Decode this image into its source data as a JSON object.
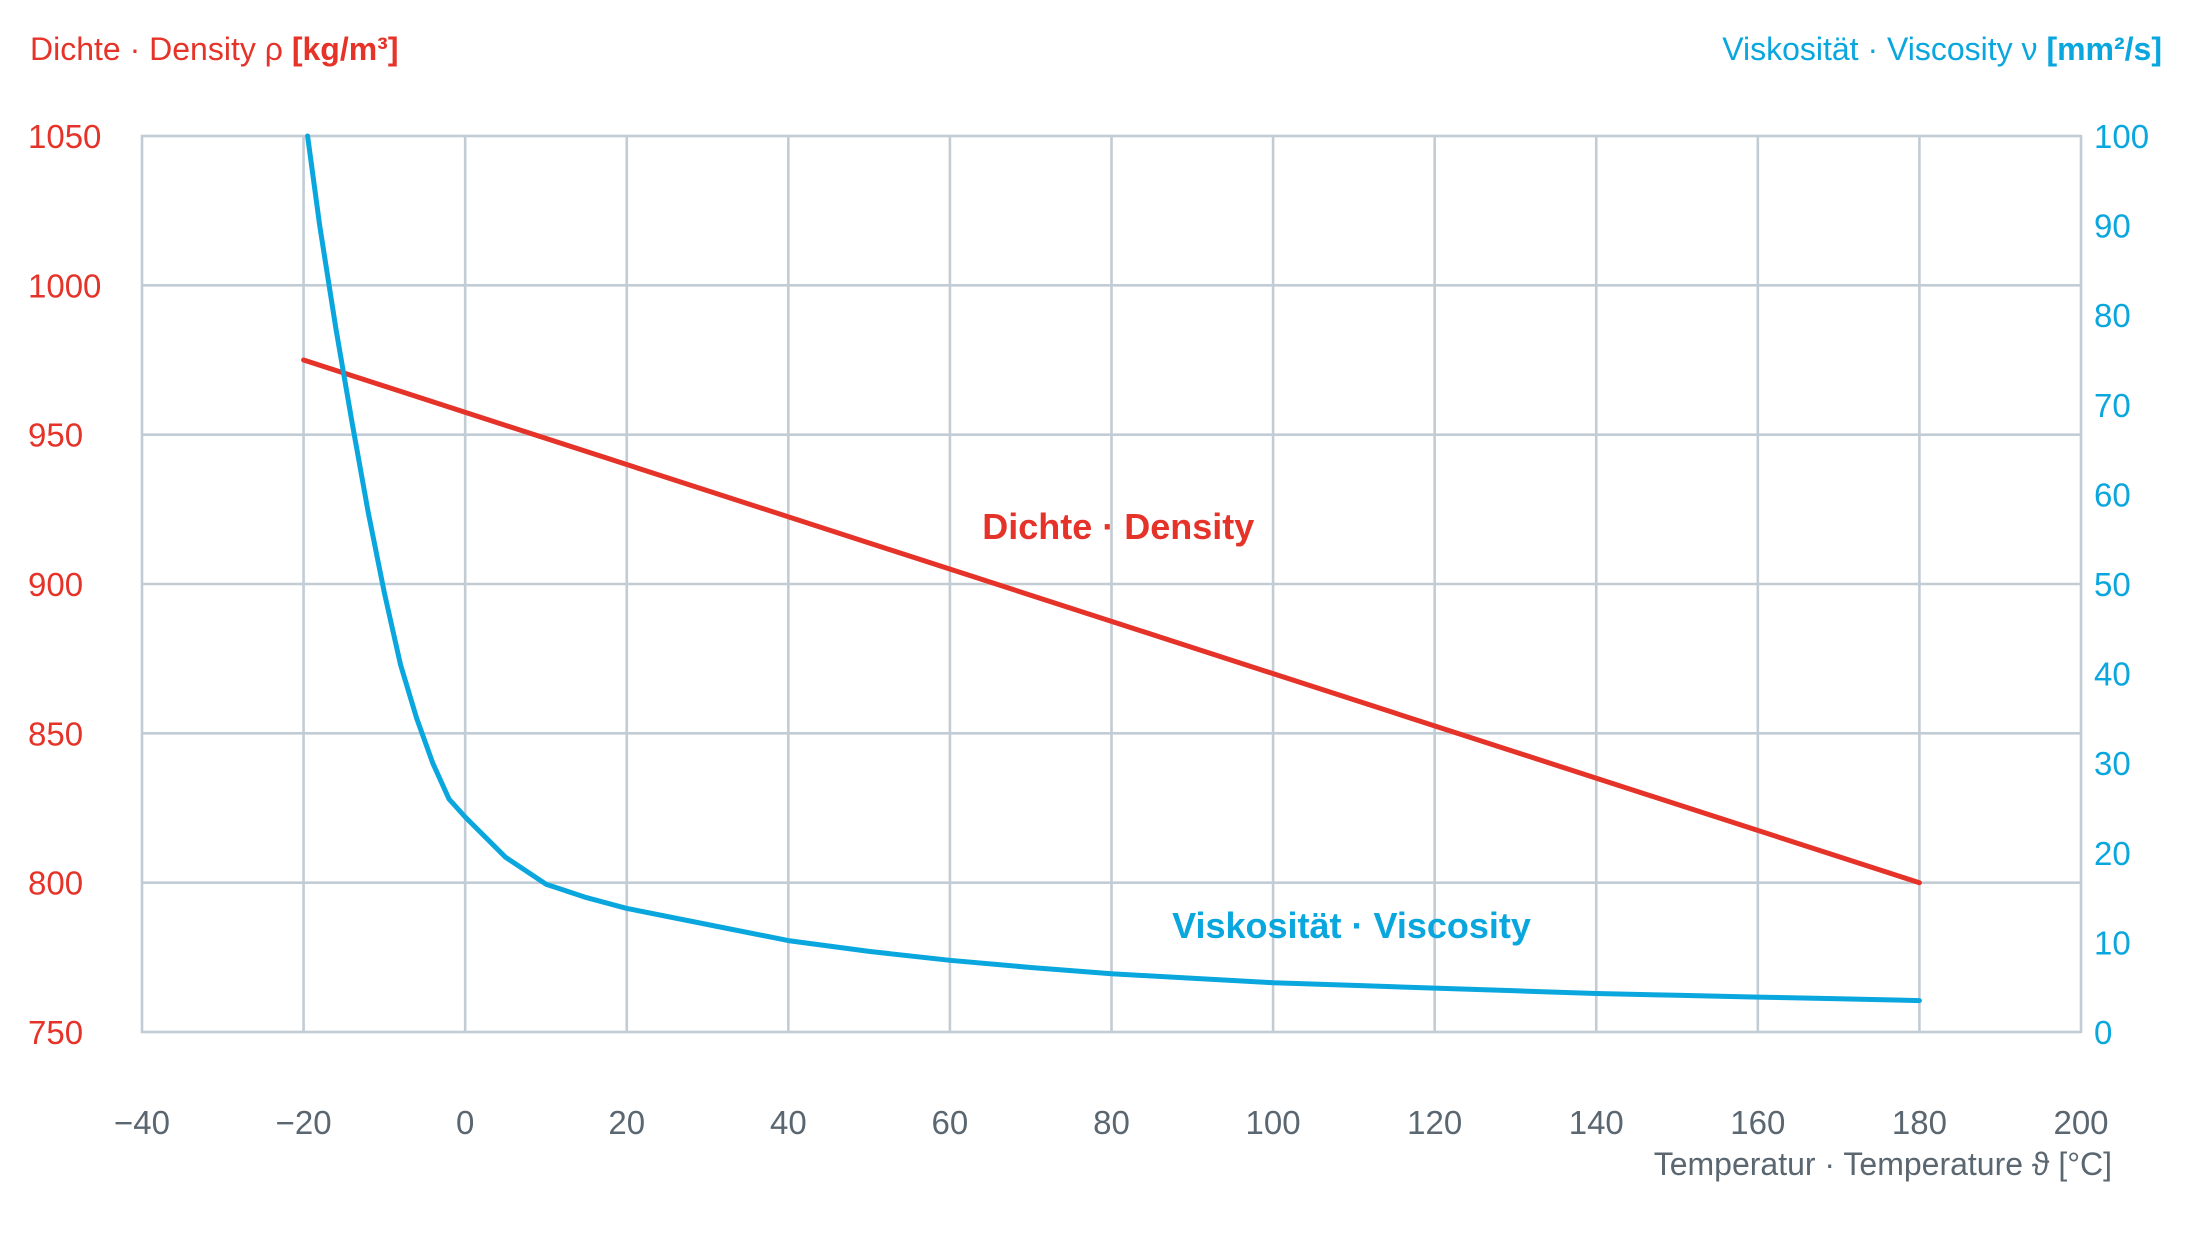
{
  "colors": {
    "density": "#e53329",
    "viscosity": "#0aa6de",
    "axis_text": "#5a6670",
    "grid": "#c2ccd4"
  },
  "titles": {
    "left_prefix": "Dichte · Density ",
    "left_symbol": "ρ",
    "left_unit": "[kg/m³]",
    "right_prefix": "Viskosität · Viscosity ",
    "right_symbol": "ν",
    "right_unit": "[mm²/s]",
    "bottom_prefix": "Temperatur · Temperature ",
    "bottom_symbol": "ϑ",
    "bottom_unit": "[°C]"
  },
  "chart_data": {
    "type": "line",
    "x_axis": {
      "label": "Temperatur · Temperature ϑ [°C]",
      "range": [
        -40,
        200
      ],
      "ticks": [
        -40,
        -20,
        0,
        20,
        40,
        60,
        80,
        100,
        120,
        140,
        160,
        180,
        200
      ],
      "tick_labels": [
        "−40",
        "−20",
        "0",
        "20",
        "40",
        "60",
        "80",
        "100",
        "120",
        "140",
        "160",
        "180",
        "200"
      ]
    },
    "y_left": {
      "label": "Dichte · Density ρ [kg/m³]",
      "range": [
        750,
        1050
      ],
      "ticks": [
        750,
        800,
        850,
        900,
        950,
        1000,
        1050
      ],
      "tick_labels": [
        "750",
        "800",
        "850",
        "900",
        "950",
        "1000",
        "1050"
      ]
    },
    "y_right": {
      "label": "Viskosität · Viscosity ν [mm²/s]",
      "range": [
        0,
        100
      ],
      "ticks": [
        0,
        10,
        20,
        30,
        40,
        50,
        60,
        70,
        80,
        90,
        100
      ],
      "tick_labels": [
        "0",
        "10",
        "20",
        "30",
        "40",
        "50",
        "60",
        "70",
        "80",
        "90",
        "100"
      ]
    },
    "grid": true,
    "series": [
      {
        "name": "Dichte · Density",
        "axis": "left",
        "x": [
          -20,
          180
        ],
        "y": [
          975,
          800
        ]
      },
      {
        "name": "Viskosität · Viscosity",
        "axis": "right",
        "x": [
          -19.5,
          -18,
          -16,
          -14,
          -12,
          -10,
          -8,
          -6,
          -4,
          -2,
          0,
          5,
          10,
          15,
          20,
          30,
          40,
          50,
          60,
          70,
          80,
          90,
          100,
          110,
          120,
          130,
          140,
          150,
          160,
          170,
          180
        ],
        "y": [
          100,
          90,
          78.5,
          68,
          58,
          49,
          41,
          35,
          30,
          26,
          24,
          19.5,
          16.5,
          15,
          13.8,
          12,
          10.2,
          9,
          8,
          7.2,
          6.5,
          6,
          5.5,
          5.2,
          4.9,
          4.6,
          4.3,
          4.1,
          3.9,
          3.7,
          3.5
        ]
      }
    ]
  }
}
